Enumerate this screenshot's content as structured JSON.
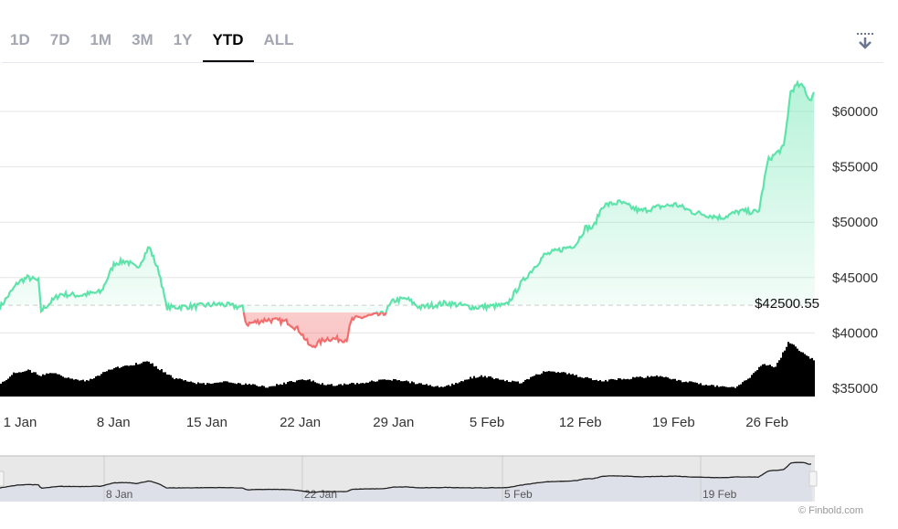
{
  "tabs": [
    {
      "label": "1D"
    },
    {
      "label": "7D"
    },
    {
      "label": "1M"
    },
    {
      "label": "3M"
    },
    {
      "label": "1Y"
    },
    {
      "label": "YTD",
      "active": true
    },
    {
      "label": "ALL"
    }
  ],
  "download_icon": "download-icon",
  "credit": "© Finbold.com",
  "colors": {
    "up": "#5ee3aa",
    "down": "#f26d6d",
    "volume": "#000000",
    "navigator_fill": "#dde0e8"
  },
  "chart_data": {
    "type": "line",
    "title": "",
    "baseline_label": "$42500.55",
    "baseline": 42500.55,
    "ylim": [
      35000,
      64000
    ],
    "yticks": [
      {
        "v": 60000,
        "label": "$60000"
      },
      {
        "v": 55000,
        "label": "$55000"
      },
      {
        "v": 50000,
        "label": "$50000"
      },
      {
        "v": 45000,
        "label": "$45000"
      },
      {
        "v": 40000,
        "label": "$40000"
      },
      {
        "v": 35000,
        "label": "$35000"
      }
    ],
    "xticks": [
      {
        "day": 1,
        "label": "1 Jan"
      },
      {
        "day": 8,
        "label": "8 Jan"
      },
      {
        "day": 15,
        "label": "15 Jan"
      },
      {
        "day": 22,
        "label": "22 Jan"
      },
      {
        "day": 29,
        "label": "29 Jan"
      },
      {
        "day": 36,
        "label": "5 Feb"
      },
      {
        "day": 43,
        "label": "12 Feb"
      },
      {
        "day": 50,
        "label": "19 Feb"
      },
      {
        "day": 57,
        "label": "26 Feb"
      }
    ],
    "navigator_ticks": [
      {
        "day": 8,
        "label": "8 Jan"
      },
      {
        "day": 22,
        "label": "22 Jan"
      },
      {
        "day": 36,
        "label": "5 Feb"
      },
      {
        "day": 50,
        "label": "19 Feb"
      }
    ],
    "series": [
      {
        "name": "Price",
        "points": [
          [
            0.5,
            42300
          ],
          [
            1.9,
            44600
          ],
          [
            2.6,
            45000
          ],
          [
            3.4,
            44700
          ],
          [
            3.6,
            42000
          ],
          [
            5.0,
            43500
          ],
          [
            6.5,
            43400
          ],
          [
            8.1,
            43700
          ],
          [
            9.1,
            46300
          ],
          [
            10.0,
            46500
          ],
          [
            10.8,
            45800
          ],
          [
            11.7,
            47800
          ],
          [
            12.5,
            45300
          ],
          [
            13.0,
            42300
          ],
          [
            15.0,
            42400
          ],
          [
            17.0,
            42600
          ],
          [
            18.7,
            42300
          ],
          [
            19.0,
            40800
          ],
          [
            20.5,
            41200
          ],
          [
            22.1,
            41000
          ],
          [
            23.0,
            40200
          ],
          [
            23.8,
            38700
          ],
          [
            25.0,
            39500
          ],
          [
            26.5,
            39400
          ],
          [
            26.9,
            41200
          ],
          [
            28.0,
            41500
          ],
          [
            29.3,
            41700
          ],
          [
            30.0,
            42900
          ],
          [
            31.0,
            43100
          ],
          [
            32.0,
            42300
          ],
          [
            34.0,
            42700
          ],
          [
            36.1,
            42300
          ],
          [
            38.5,
            42500
          ],
          [
            39.6,
            44500
          ],
          [
            41.3,
            47000
          ],
          [
            43.0,
            47700
          ],
          [
            43.7,
            48000
          ],
          [
            44.4,
            49500
          ],
          [
            45.0,
            49500
          ],
          [
            45.7,
            51500
          ],
          [
            47.0,
            51800
          ],
          [
            48.5,
            51000
          ],
          [
            50.0,
            51400
          ],
          [
            51.2,
            51600
          ],
          [
            52.5,
            50900
          ],
          [
            54.6,
            50400
          ],
          [
            56.0,
            51000
          ],
          [
            57.4,
            50900
          ],
          [
            58.1,
            55600
          ],
          [
            59.3,
            56800
          ],
          [
            59.8,
            61800
          ],
          [
            60.3,
            62400
          ],
          [
            60.8,
            62200
          ],
          [
            61.2,
            61000
          ],
          [
            61.6,
            61700
          ]
        ]
      },
      {
        "name": "Volume",
        "relative": [
          0.2,
          0.4,
          0.45,
          0.35,
          0.4,
          0.3,
          0.25,
          0.3,
          0.45,
          0.5,
          0.55,
          0.6,
          0.45,
          0.3,
          0.25,
          0.2,
          0.22,
          0.25,
          0.2,
          0.18,
          0.15,
          0.2,
          0.25,
          0.28,
          0.2,
          0.18,
          0.2,
          0.22,
          0.25,
          0.28,
          0.26,
          0.22,
          0.18,
          0.15,
          0.2,
          0.3,
          0.35,
          0.3,
          0.25,
          0.22,
          0.35,
          0.45,
          0.4,
          0.35,
          0.3,
          0.25,
          0.28,
          0.3,
          0.32,
          0.35,
          0.3,
          0.25,
          0.22,
          0.18,
          0.15,
          0.15,
          0.3,
          0.55,
          0.5,
          0.95,
          0.75,
          0.6
        ]
      }
    ]
  }
}
